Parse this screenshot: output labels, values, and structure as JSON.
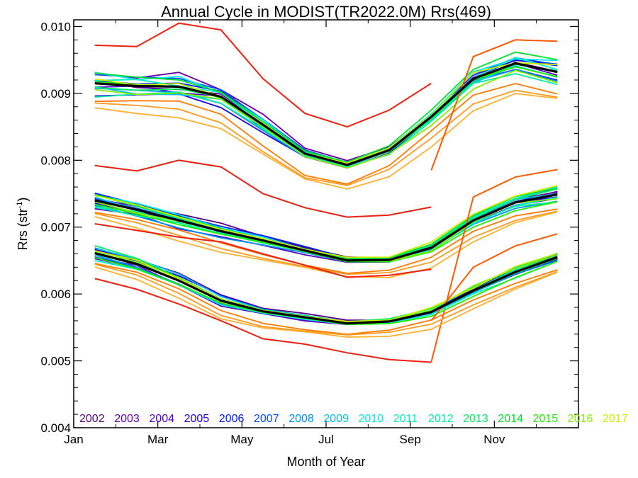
{
  "chart_data": {
    "type": "line",
    "title": "Annual Cycle in MODIST(TR2022.0M) Rrs(469)",
    "xlabel": "Month of Year",
    "ylabel_main": "Rrs (str",
    "ylabel_sup": "-1",
    "ylabel_tail": ")",
    "xlim": [
      1,
      13
    ],
    "ylim": [
      0.004,
      0.0101
    ],
    "x_ticks": [
      {
        "value": 1,
        "label": "Jan"
      },
      {
        "value": 3,
        "label": "Mar"
      },
      {
        "value": 5,
        "label": "May"
      },
      {
        "value": 7,
        "label": "Jul"
      },
      {
        "value": 9,
        "label": "Sep"
      },
      {
        "value": 11,
        "label": "Nov"
      }
    ],
    "y_ticks": [
      {
        "value": 0.004,
        "label": "0.004"
      },
      {
        "value": 0.005,
        "label": "0.005"
      },
      {
        "value": 0.006,
        "label": "0.006"
      },
      {
        "value": 0.007,
        "label": "0.007"
      },
      {
        "value": 0.008,
        "label": "0.008"
      },
      {
        "value": 0.009,
        "label": "0.009"
      },
      {
        "value": 0.01,
        "label": "0.010"
      }
    ],
    "legend_position": "bottom",
    "legend": [
      {
        "label": "2002",
        "color": "#5a0080"
      },
      {
        "label": "2003",
        "color": "#6a00a8"
      },
      {
        "label": "2004",
        "color": "#5000c8"
      },
      {
        "label": "2005",
        "color": "#2000e0"
      },
      {
        "label": "2006",
        "color": "#0020f0"
      },
      {
        "label": "2007",
        "color": "#0050f0"
      },
      {
        "label": "2008",
        "color": "#0090f0"
      },
      {
        "label": "2009",
        "color": "#00c0f0"
      },
      {
        "label": "2010",
        "color": "#00e8f0"
      },
      {
        "label": "2011",
        "color": "#00f0c8"
      },
      {
        "label": "2012",
        "color": "#00f0a0"
      },
      {
        "label": "2013",
        "color": "#00f060"
      },
      {
        "label": "2014",
        "color": "#00e030"
      },
      {
        "label": "2015",
        "color": "#20f000"
      },
      {
        "label": "2016",
        "color": "#80f000"
      },
      {
        "label": "2017",
        "color": "#c8f000"
      }
    ],
    "x": [
      1.5,
      2.5,
      3.5,
      4.5,
      5.5,
      6.5,
      7.5,
      8.5,
      9.5,
      10.5,
      11.5,
      12.5
    ],
    "groups": [
      {
        "mean": [
          0.00915,
          0.00911,
          0.0091,
          0.00895,
          0.00853,
          0.0081,
          0.00793,
          0.00815,
          0.00865,
          0.00922,
          0.00945,
          0.00932
        ],
        "spread": 0.0003,
        "red": [
          0.00972,
          0.0097,
          0.01005,
          0.00995,
          0.00922,
          0.0087,
          0.0085,
          0.00875,
          0.00915,
          null,
          null,
          null
        ],
        "red2": [
          0.00792,
          0.00784,
          0.008,
          0.0079,
          0.0075,
          0.00729,
          0.00715,
          0.00718,
          0.0073,
          null,
          null,
          null
        ],
        "orange": [
          null,
          null,
          null,
          null,
          null,
          null,
          null,
          null,
          0.00785,
          0.00955,
          0.0098,
          0.00978
        ]
      },
      {
        "mean": [
          0.0074,
          0.00726,
          0.0071,
          0.00694,
          0.0068,
          0.00665,
          0.0065,
          0.00651,
          0.00669,
          0.0071,
          0.00737,
          0.00749
        ],
        "spread": 0.0002,
        "red": [
          0.00705,
          0.00695,
          0.00685,
          0.00678,
          0.0066,
          0.00643,
          0.00625,
          0.00628,
          0.00637,
          null,
          null,
          null
        ],
        "red2": null,
        "orange": [
          null,
          null,
          null,
          null,
          null,
          null,
          null,
          null,
          0.00498,
          0.00745,
          0.00775,
          0.00786
        ]
      },
      {
        "mean": [
          0.00661,
          0.00645,
          0.0062,
          0.0059,
          0.00574,
          0.00565,
          0.00556,
          0.00559,
          0.00573,
          0.00605,
          0.00633,
          0.00655
        ],
        "spread": 0.00017,
        "red": [
          0.00623,
          0.00607,
          0.00585,
          0.0056,
          0.00533,
          0.00525,
          0.00512,
          0.00502,
          0.00498,
          null,
          null,
          null
        ],
        "red2": null,
        "orange": [
          null,
          null,
          null,
          null,
          null,
          null,
          null,
          null,
          0.0056,
          0.0064,
          0.00672,
          0.0069
        ]
      }
    ]
  }
}
